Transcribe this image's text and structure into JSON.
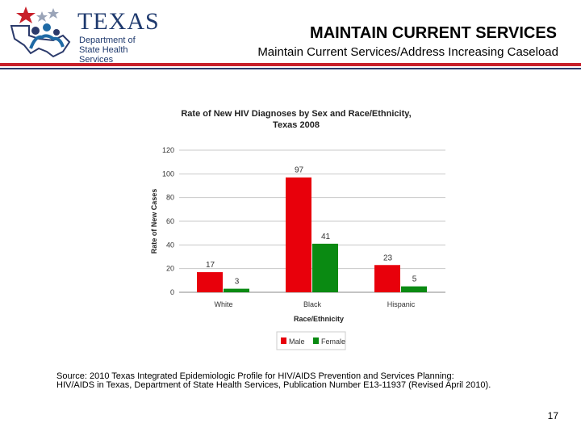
{
  "logo": {
    "state": "TEXAS",
    "dept_line1": "Department of",
    "dept_line2": "State Health Services"
  },
  "slide": {
    "title": "MAINTAIN CURRENT SERVICES",
    "subtitle": "Maintain Current Services/Address Increasing Caseload",
    "source_line1": "Source: 2010 Texas Integrated Epidemiologic Profile for HIV/AIDS Prevention and Services Planning:",
    "source_line2": "HIV/AIDS in Texas, Department of State Health Services, Publication Number E13-11937 (Revised April 2010).",
    "page_number": "17"
  },
  "colors": {
    "male": "#e8000b",
    "female": "#0a8a12",
    "title_red": "#c8202a",
    "navy": "#2b3a6b"
  },
  "chart_data": {
    "type": "bar",
    "title": "Rate of New HIV Diagnoses by Sex and Race/Ethnicity,",
    "subtitle": "Texas 2008",
    "xlabel": "Race/Ethnicity",
    "ylabel": "Rate of New Cases",
    "categories": [
      "White",
      "Black",
      "Hispanic"
    ],
    "series": [
      {
        "name": "Male",
        "values": [
          17,
          97,
          23
        ],
        "color": "#e8000b"
      },
      {
        "name": "Female",
        "values": [
          3,
          41,
          5
        ],
        "color": "#0a8a12"
      }
    ],
    "ylim": [
      0,
      120
    ],
    "yticks": [
      "0",
      "20",
      "40",
      "60",
      "80",
      "100",
      "120"
    ],
    "grid": true,
    "legend": "bottom"
  }
}
